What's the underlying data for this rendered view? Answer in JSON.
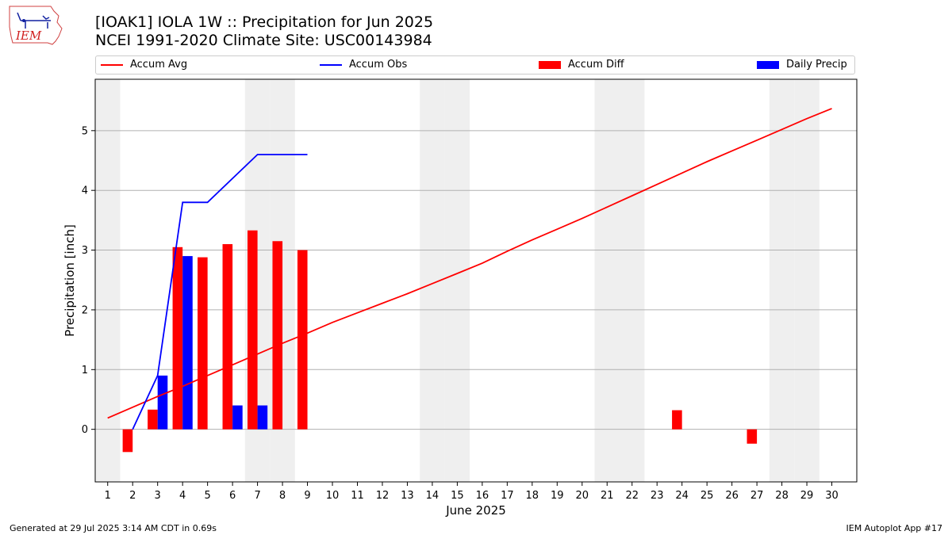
{
  "header": {
    "title": "[IOAK1] IOLA 1W :: Precipitation for Jun 2025",
    "subtitle": "NCEI 1991-2020 Climate Site: USC00143984",
    "logo_text": "IEM"
  },
  "footer": {
    "generated": "Generated at 29 Jul 2025 3:14 AM CDT in 0.69s",
    "app": "IEM Autoplot App #17"
  },
  "chart_data": {
    "type": "bar",
    "xlabel": "June 2025",
    "ylabel": "Precipitation [inch]",
    "xlim": [
      0.5,
      31
    ],
    "ylim": [
      -0.88,
      5.86
    ],
    "x_ticks": [
      1,
      2,
      3,
      4,
      5,
      6,
      7,
      8,
      9,
      10,
      11,
      12,
      13,
      14,
      15,
      16,
      17,
      18,
      19,
      20,
      21,
      22,
      23,
      24,
      25,
      26,
      27,
      28,
      29,
      30
    ],
    "y_ticks": [
      0,
      1,
      2,
      3,
      4,
      5
    ],
    "grid": "horizontal",
    "legend": "top",
    "weekend_days": [
      1,
      7,
      8,
      14,
      15,
      21,
      22,
      28,
      29
    ],
    "series": [
      {
        "name": "Accum Avg",
        "kind": "line",
        "color": "#ff0000",
        "x": [
          1,
          2,
          3,
          4,
          5,
          6,
          7,
          8,
          9,
          10,
          11,
          12,
          13,
          14,
          15,
          16,
          17,
          18,
          19,
          20,
          21,
          22,
          23,
          24,
          25,
          26,
          27,
          28,
          29,
          30
        ],
        "values": [
          0.19,
          0.37,
          0.55,
          0.72,
          0.9,
          1.08,
          1.26,
          1.44,
          1.61,
          1.79,
          1.95,
          2.11,
          2.27,
          2.44,
          2.61,
          2.78,
          2.98,
          3.17,
          3.35,
          3.53,
          3.72,
          3.91,
          4.1,
          4.29,
          4.48,
          4.66,
          4.84,
          5.02,
          5.2,
          5.37
        ]
      },
      {
        "name": "Accum Obs",
        "kind": "line",
        "color": "#0000ff",
        "x": [
          2,
          3,
          4,
          5,
          6,
          7,
          8,
          9
        ],
        "values": [
          0.0,
          0.9,
          3.8,
          3.8,
          4.2,
          4.6,
          4.6,
          4.6
        ]
      },
      {
        "name": "Accum Diff",
        "kind": "bar",
        "color": "#ff0000",
        "x": [
          2,
          3,
          4,
          5,
          6,
          7,
          8,
          9,
          24,
          27
        ],
        "values": [
          -0.38,
          0.33,
          3.05,
          2.88,
          3.1,
          3.33,
          3.15,
          3.0,
          0.32,
          -0.24
        ]
      },
      {
        "name": "Daily Precip",
        "kind": "bar",
        "color": "#0000ff",
        "x": [
          3,
          4,
          6,
          7
        ],
        "values": [
          0.9,
          2.9,
          0.4,
          0.4
        ]
      }
    ]
  }
}
